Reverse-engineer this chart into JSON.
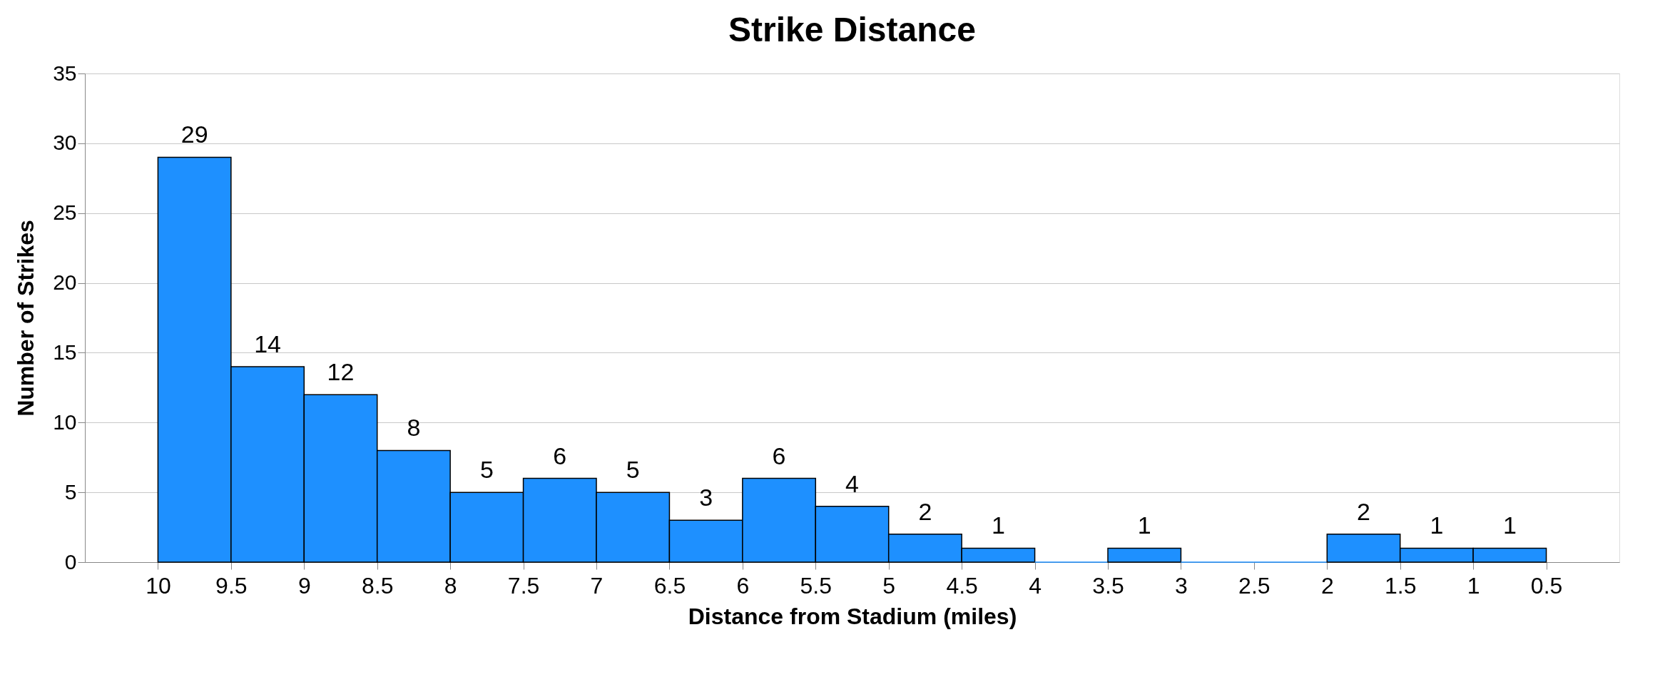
{
  "chart_data": {
    "type": "histogram",
    "title": "Strike Distance",
    "xlabel": "Distance from Stadium (miles)",
    "ylabel": "Number of Strikes",
    "bins": [
      10,
      9.5,
      9,
      8.5,
      8,
      7.5,
      7,
      6.5,
      6,
      5.5,
      5,
      4.5,
      4,
      3.5,
      3,
      2.5,
      2,
      1.5,
      1,
      0.5
    ],
    "values": [
      29,
      14,
      12,
      8,
      5,
      6,
      5,
      3,
      6,
      4,
      2,
      1,
      0,
      1,
      0,
      0,
      2,
      1,
      1
    ],
    "value_labels": [
      "29",
      "14",
      "12",
      "8",
      "5",
      "6",
      "5",
      "3",
      "6",
      "4",
      "2",
      "1",
      null,
      "1",
      null,
      null,
      "2",
      "1",
      "1"
    ],
    "color": "#1e90ff",
    "xlim": [
      10.5,
      0
    ],
    "xticks": [
      10,
      9.5,
      9,
      8.5,
      8,
      7.5,
      7,
      6.5,
      6,
      5.5,
      5,
      4.5,
      4,
      3.5,
      3,
      2.5,
      2,
      1.5,
      1,
      0.5
    ],
    "ylim": [
      0,
      35
    ],
    "yticks": [
      0,
      5,
      10,
      15,
      20,
      25,
      30,
      35
    ],
    "grid": "y"
  }
}
